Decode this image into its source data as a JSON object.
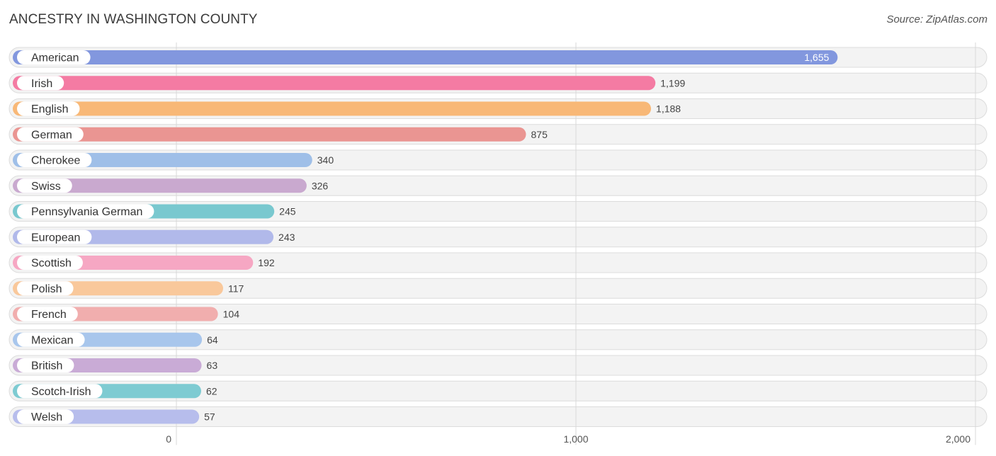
{
  "header": {
    "title": "ANCESTRY IN WASHINGTON COUNTY",
    "source": "Source: ZipAtlas.com"
  },
  "chart_data": {
    "type": "bar",
    "orientation": "horizontal",
    "title": "ANCESTRY IN WASHINGTON COUNTY",
    "categories": [
      "American",
      "Irish",
      "English",
      "German",
      "Cherokee",
      "Swiss",
      "Pennsylvania German",
      "European",
      "Scottish",
      "Polish",
      "French",
      "Mexican",
      "British",
      "Scotch-Irish",
      "Welsh"
    ],
    "values": [
      1655,
      1199,
      1188,
      875,
      340,
      326,
      245,
      243,
      192,
      117,
      104,
      64,
      63,
      62,
      57
    ],
    "value_labels": [
      "1,655",
      "1,199",
      "1,188",
      "875",
      "340",
      "326",
      "245",
      "243",
      "192",
      "117",
      "104",
      "64",
      "63",
      "62",
      "57"
    ],
    "colors": [
      "#8297de",
      "#f47ba3",
      "#f8b877",
      "#ea9592",
      "#9fbfe8",
      "#c9a9cf",
      "#79c8cf",
      "#b1b9ea",
      "#f6a7c3",
      "#f9c89b",
      "#f1aeae",
      "#a8c6ec",
      "#c9abd6",
      "#7ecbd2",
      "#b7bdec"
    ],
    "xlim": [
      0,
      2000
    ],
    "xticks": [
      0,
      1000,
      2000
    ],
    "xtick_labels": [
      "0",
      "1,000",
      "2,000"
    ],
    "grid": true
  }
}
